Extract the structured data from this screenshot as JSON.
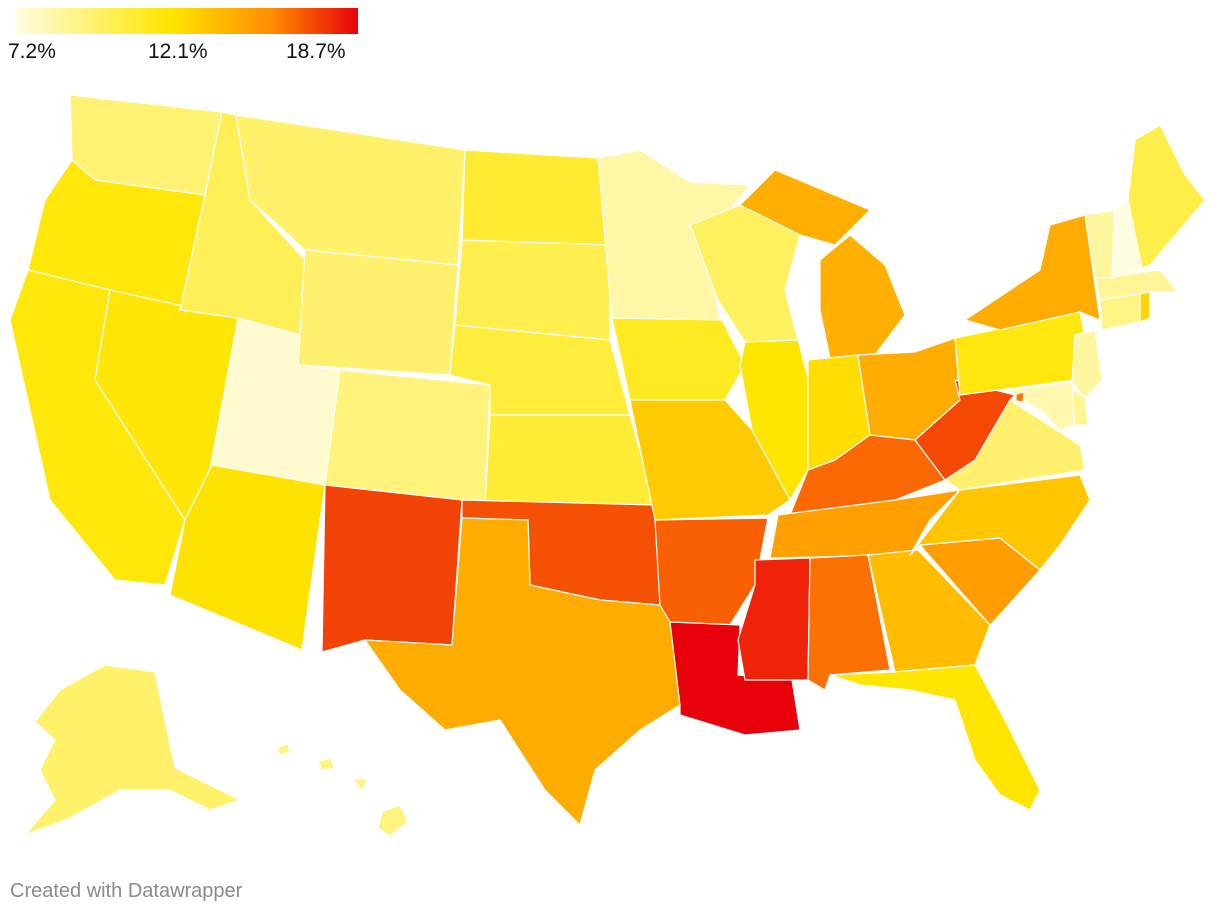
{
  "legend": {
    "min_label": "7.2%",
    "mid_label": "12.1%",
    "max_label": "18.7%",
    "min": 7.2,
    "mid": 12.1,
    "max": 18.7,
    "colors": [
      "#fffde0",
      "#ffe600",
      "#ff8c00",
      "#e8000b"
    ]
  },
  "footer": {
    "credit": "Created with Datawrapper"
  },
  "map_data": {
    "type": "choropleth",
    "unit": "%",
    "states": [
      {
        "id": "WA",
        "value": 9.6
      },
      {
        "id": "OR",
        "value": 11.9
      },
      {
        "id": "CA",
        "value": 11.9
      },
      {
        "id": "NV",
        "value": 12.0
      },
      {
        "id": "ID",
        "value": 10.2
      },
      {
        "id": "MT",
        "value": 9.8
      },
      {
        "id": "WY",
        "value": 9.7
      },
      {
        "id": "UT",
        "value": 7.6
      },
      {
        "id": "AZ",
        "value": 12.2
      },
      {
        "id": "CO",
        "value": 9.4
      },
      {
        "id": "NM",
        "value": 17.0
      },
      {
        "id": "ND",
        "value": 11.0
      },
      {
        "id": "SD",
        "value": 10.4
      },
      {
        "id": "NE",
        "value": 10.8
      },
      {
        "id": "KS",
        "value": 10.9
      },
      {
        "id": "OK",
        "value": 16.6
      },
      {
        "id": "TX",
        "value": 14.0
      },
      {
        "id": "MN",
        "value": 8.5
      },
      {
        "id": "IA",
        "value": 11.4
      },
      {
        "id": "MO",
        "value": 13.0
      },
      {
        "id": "AR",
        "value": 16.2
      },
      {
        "id": "LA",
        "value": 18.7
      },
      {
        "id": "WI",
        "value": 10.0
      },
      {
        "id": "IL",
        "value": 12.1
      },
      {
        "id": "MI",
        "value": 13.9
      },
      {
        "id": "IN",
        "value": 12.4
      },
      {
        "id": "OH",
        "value": 14.0
      },
      {
        "id": "KY",
        "value": 16.0
      },
      {
        "id": "TN",
        "value": 14.4
      },
      {
        "id": "MS",
        "value": 17.8
      },
      {
        "id": "AL",
        "value": 15.8
      },
      {
        "id": "GA",
        "value": 13.5
      },
      {
        "id": "FL",
        "value": 12.1
      },
      {
        "id": "SC",
        "value": 14.5
      },
      {
        "id": "NC",
        "value": 13.2
      },
      {
        "id": "VA",
        "value": 9.7
      },
      {
        "id": "WV",
        "value": 16.8
      },
      {
        "id": "PA",
        "value": 11.8
      },
      {
        "id": "NY",
        "value": 14.0
      },
      {
        "id": "ME",
        "value": 10.5
      },
      {
        "id": "VT",
        "value": 8.6
      },
      {
        "id": "NH",
        "value": 7.2
      },
      {
        "id": "MA",
        "value": 8.8
      },
      {
        "id": "CT",
        "value": 9.2
      },
      {
        "id": "RI",
        "value": 12.6
      },
      {
        "id": "NJ",
        "value": 8.6
      },
      {
        "id": "DE",
        "value": 9.0
      },
      {
        "id": "MD",
        "value": 8.3
      },
      {
        "id": "DC",
        "value": 15.6
      },
      {
        "id": "AK",
        "value": 9.8
      },
      {
        "id": "HI",
        "value": 9.3
      }
    ]
  }
}
